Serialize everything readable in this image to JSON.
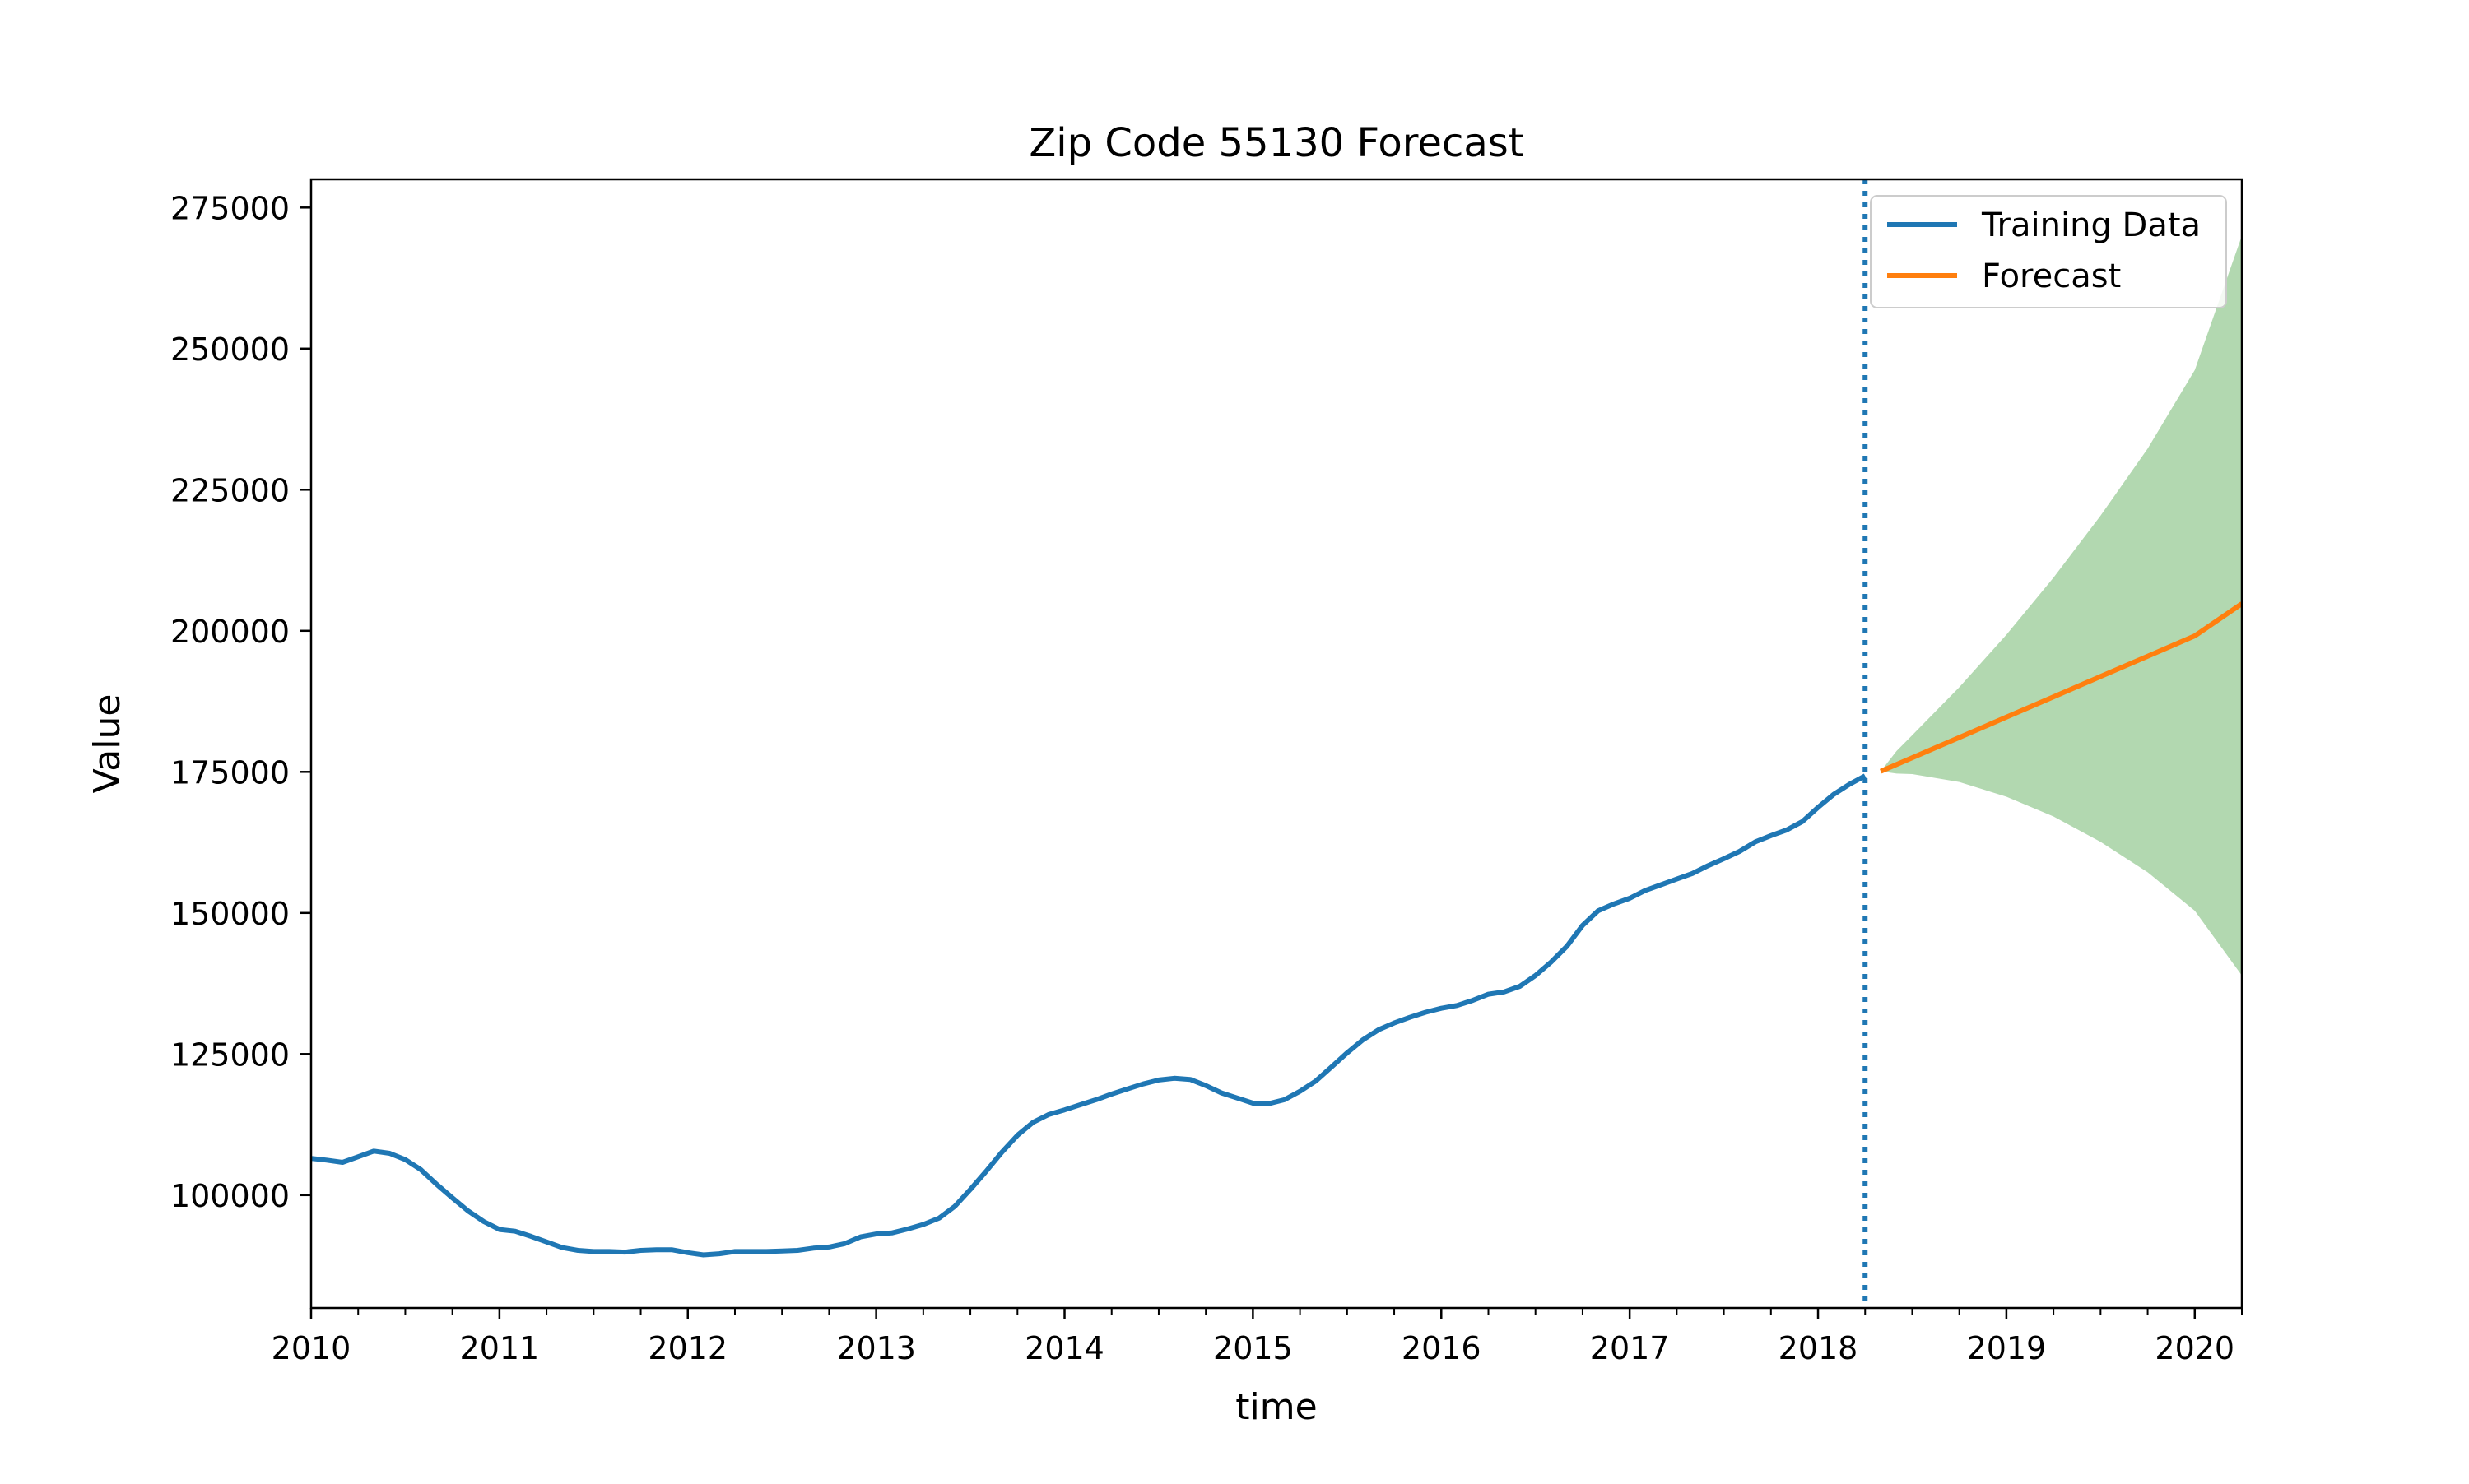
{
  "chart_data": {
    "type": "line",
    "title": "Zip Code 55130 Forecast",
    "xlabel": "time",
    "ylabel": "Value",
    "xlim": [
      2010.0,
      2020.25
    ],
    "ylim": [
      80000,
      280000
    ],
    "x_ticks": [
      2010,
      2011,
      2012,
      2013,
      2014,
      2015,
      2016,
      2017,
      2018,
      2019,
      2020
    ],
    "x_tick_labels": [
      "2010",
      "2011",
      "2012",
      "2013",
      "2014",
      "2015",
      "2016",
      "2017",
      "2018",
      "2019",
      "2020"
    ],
    "y_ticks": [
      100000,
      125000,
      150000,
      175000,
      200000,
      225000,
      250000,
      275000
    ],
    "y_tick_labels": [
      "100000",
      "125000",
      "150000",
      "175000",
      "200000",
      "225000",
      "250000",
      "275000"
    ],
    "grid": false,
    "legend_position": "top-right",
    "cutoff_x": 2018.25,
    "series": [
      {
        "name": "Training Data",
        "color": "#1f77b4",
        "points": [
          [
            2010.0,
            106500
          ],
          [
            2010.083,
            106200
          ],
          [
            2010.167,
            105800
          ],
          [
            2010.25,
            106800
          ],
          [
            2010.333,
            107800
          ],
          [
            2010.417,
            107400
          ],
          [
            2010.5,
            106300
          ],
          [
            2010.583,
            104500
          ],
          [
            2010.667,
            101900
          ],
          [
            2010.75,
            99500
          ],
          [
            2010.833,
            97200
          ],
          [
            2010.917,
            95300
          ],
          [
            2011.0,
            93900
          ],
          [
            2011.083,
            93600
          ],
          [
            2011.167,
            92700
          ],
          [
            2011.25,
            91700
          ],
          [
            2011.333,
            90700
          ],
          [
            2011.417,
            90200
          ],
          [
            2011.5,
            90000
          ],
          [
            2011.583,
            90000
          ],
          [
            2011.667,
            89900
          ],
          [
            2011.75,
            90200
          ],
          [
            2011.833,
            90300
          ],
          [
            2011.917,
            90300
          ],
          [
            2012.0,
            89800
          ],
          [
            2012.083,
            89400
          ],
          [
            2012.167,
            89600
          ],
          [
            2012.25,
            90000
          ],
          [
            2012.333,
            90000
          ],
          [
            2012.417,
            90000
          ],
          [
            2012.5,
            90100
          ],
          [
            2012.583,
            90200
          ],
          [
            2012.667,
            90600
          ],
          [
            2012.75,
            90800
          ],
          [
            2012.833,
            91400
          ],
          [
            2012.917,
            92600
          ],
          [
            2013.0,
            93100
          ],
          [
            2013.083,
            93300
          ],
          [
            2013.167,
            94000
          ],
          [
            2013.25,
            94800
          ],
          [
            2013.333,
            95900
          ],
          [
            2013.417,
            98000
          ],
          [
            2013.5,
            101000
          ],
          [
            2013.583,
            104200
          ],
          [
            2013.667,
            107600
          ],
          [
            2013.75,
            110600
          ],
          [
            2013.833,
            112900
          ],
          [
            2013.917,
            114300
          ],
          [
            2014.0,
            115100
          ],
          [
            2014.083,
            116000
          ],
          [
            2014.167,
            116900
          ],
          [
            2014.25,
            117900
          ],
          [
            2014.333,
            118800
          ],
          [
            2014.417,
            119700
          ],
          [
            2014.5,
            120400
          ],
          [
            2014.583,
            120700
          ],
          [
            2014.667,
            120500
          ],
          [
            2014.75,
            119400
          ],
          [
            2014.833,
            118100
          ],
          [
            2014.917,
            117200
          ],
          [
            2015.0,
            116300
          ],
          [
            2015.083,
            116200
          ],
          [
            2015.167,
            116900
          ],
          [
            2015.25,
            118400
          ],
          [
            2015.333,
            120200
          ],
          [
            2015.417,
            122700
          ],
          [
            2015.5,
            125200
          ],
          [
            2015.583,
            127500
          ],
          [
            2015.667,
            129300
          ],
          [
            2015.75,
            130500
          ],
          [
            2015.833,
            131500
          ],
          [
            2015.917,
            132400
          ],
          [
            2016.0,
            133100
          ],
          [
            2016.083,
            133600
          ],
          [
            2016.167,
            134500
          ],
          [
            2016.25,
            135600
          ],
          [
            2016.333,
            136000
          ],
          [
            2016.417,
            137000
          ],
          [
            2016.5,
            138900
          ],
          [
            2016.583,
            141300
          ],
          [
            2016.667,
            144100
          ],
          [
            2016.75,
            147800
          ],
          [
            2016.833,
            150400
          ],
          [
            2016.917,
            151600
          ],
          [
            2017.0,
            152600
          ],
          [
            2017.083,
            154000
          ],
          [
            2017.167,
            155000
          ],
          [
            2017.25,
            156000
          ],
          [
            2017.333,
            157000
          ],
          [
            2017.417,
            158400
          ],
          [
            2017.5,
            159600
          ],
          [
            2017.583,
            160900
          ],
          [
            2017.667,
            162600
          ],
          [
            2017.75,
            163700
          ],
          [
            2017.833,
            164700
          ],
          [
            2017.917,
            166200
          ],
          [
            2018.0,
            168700
          ],
          [
            2018.083,
            171000
          ],
          [
            2018.167,
            172800
          ],
          [
            2018.25,
            174300
          ]
        ]
      },
      {
        "name": "Forecast",
        "color": "#ff7f0e",
        "points": [
          [
            2018.333,
            175100
          ],
          [
            2018.5,
            177500
          ],
          [
            2018.75,
            181100
          ],
          [
            2019.0,
            184700
          ],
          [
            2019.25,
            188300
          ],
          [
            2019.5,
            191900
          ],
          [
            2019.75,
            195500
          ],
          [
            2020.0,
            199100
          ],
          [
            2020.25,
            204800
          ]
        ]
      }
    ],
    "confidence_band": {
      "color": "#b2d8b0",
      "points": [
        [
          2018.333,
          175100,
          175100
        ],
        [
          2018.417,
          174700,
          178700
        ],
        [
          2018.5,
          174600,
          181500
        ],
        [
          2018.75,
          173200,
          190000
        ],
        [
          2019.0,
          170600,
          199300
        ],
        [
          2019.25,
          167100,
          209400
        ],
        [
          2019.5,
          162600,
          220400
        ],
        [
          2019.75,
          157200,
          232300
        ],
        [
          2020.0,
          150400,
          246200
        ],
        [
          2020.25,
          138900,
          270000
        ]
      ]
    }
  }
}
